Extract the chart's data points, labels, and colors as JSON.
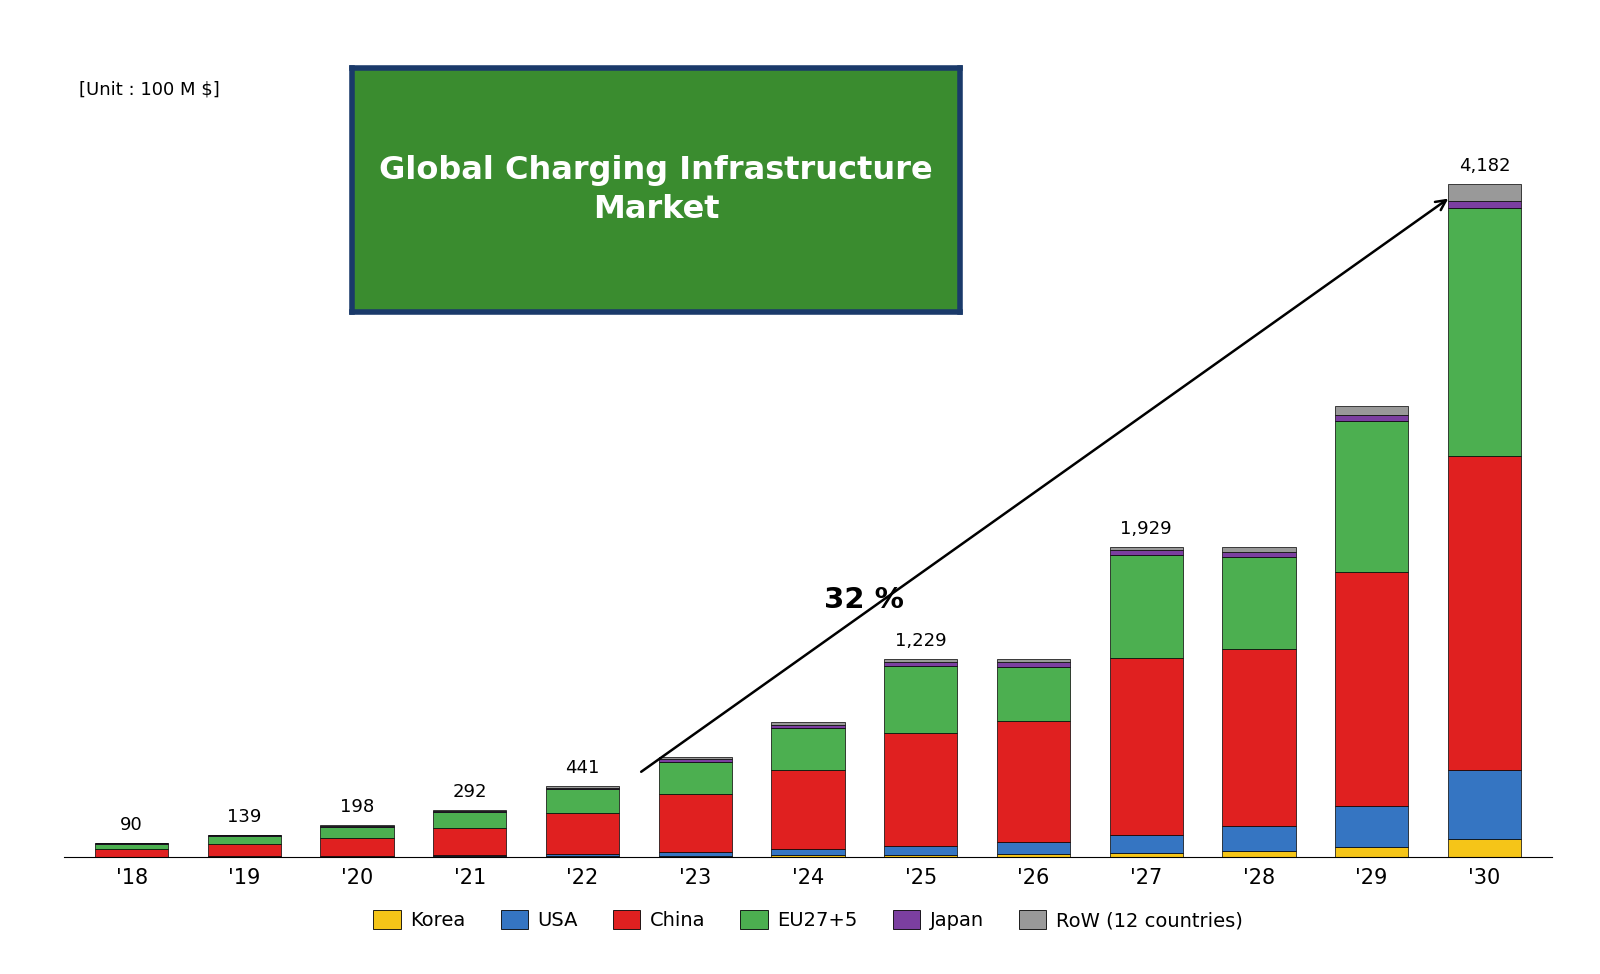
{
  "years": [
    "'18",
    "'19",
    "'20",
    "'21",
    "'22",
    "'23",
    "'24",
    "'25",
    "'26",
    "'27",
    "'28",
    "'29",
    "'30"
  ],
  "displayed": [
    90,
    139,
    198,
    292,
    441,
    620,
    840,
    1229,
    1229,
    1929,
    1929,
    2800,
    4182
  ],
  "label_texts": [
    "90",
    "139",
    "198",
    "292",
    "441",
    null,
    null,
    "1,229",
    null,
    "1,929",
    null,
    null,
    "4,182"
  ],
  "segments": {
    "Korea": [
      1,
      2,
      3,
      4,
      6,
      8,
      12,
      15,
      18,
      25,
      35,
      60,
      110
    ],
    "USA": [
      2,
      4,
      6,
      9,
      15,
      25,
      38,
      55,
      75,
      110,
      160,
      260,
      430
    ],
    "China": [
      50,
      78,
      112,
      166,
      255,
      360,
      490,
      700,
      750,
      1100,
      1100,
      1450,
      1950
    ],
    "EU27+5": [
      30,
      47,
      68,
      100,
      145,
      200,
      265,
      415,
      340,
      640,
      570,
      940,
      1540
    ],
    "Japan": [
      3,
      4,
      5,
      7,
      10,
      14,
      18,
      25,
      28,
      30,
      30,
      35,
      45
    ],
    "RoW": [
      4,
      4,
      4,
      6,
      10,
      13,
      17,
      19,
      18,
      24,
      34,
      55,
      107
    ]
  },
  "colors": {
    "Korea": "#F5C518",
    "USA": "#3575C2",
    "China": "#E02020",
    "EU27+5": "#4CAF50",
    "Japan": "#7B3FA0",
    "RoW": "#999999"
  },
  "title": "Global Charging Infrastructure\nMarket",
  "title_bg_color": "#3A8C2F",
  "title_text_color": "#ffffff",
  "title_border_color": "#1A3A6A",
  "unit_label": "[Unit : 100 M $]",
  "cagr_label": "32 %",
  "background_color": "#ffffff"
}
